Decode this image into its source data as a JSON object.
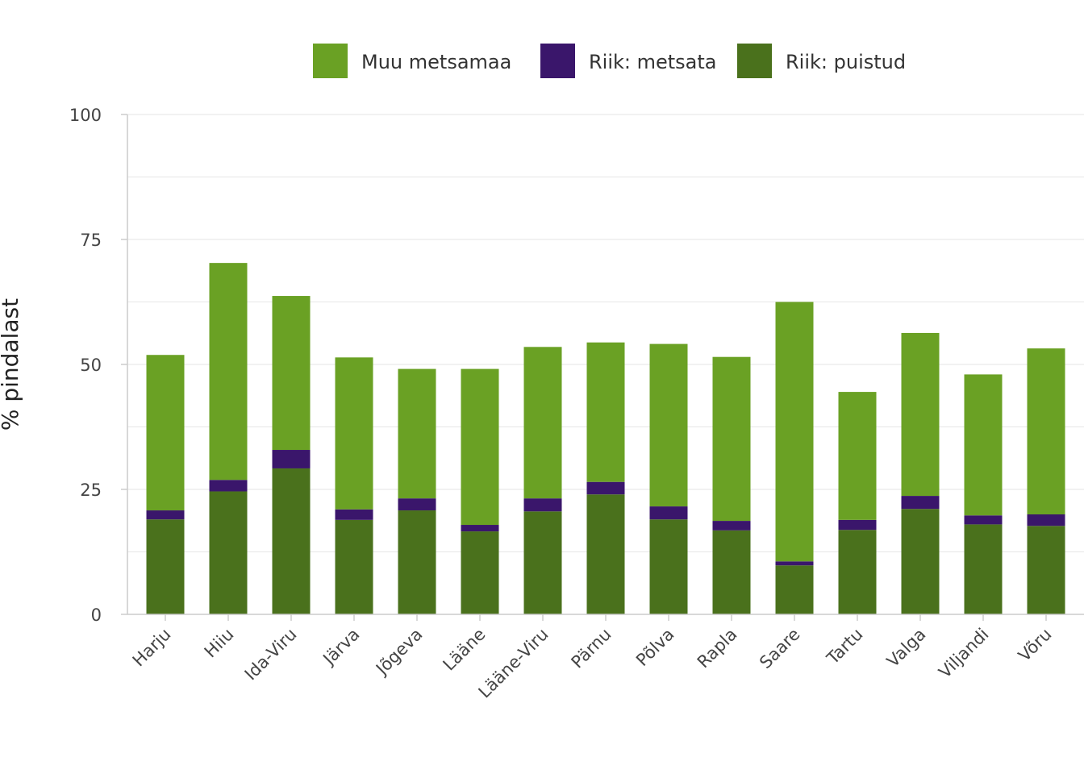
{
  "chart_data": {
    "type": "bar",
    "stacked": true,
    "ylabel": "% pindalast",
    "ylim": [
      0,
      100
    ],
    "yticks": [
      "0",
      "25",
      "50",
      "75",
      "100"
    ],
    "grid": true,
    "legend_position": "top",
    "categories": [
      "Harju",
      "Hiiu",
      "Ida-Viru",
      "Järva",
      "Jõgeva",
      "Lääne",
      "Lääne-Viru",
      "Pärnu",
      "Põlva",
      "Rapla",
      "Saare",
      "Tartu",
      "Valga",
      "Viljandi",
      "Võru"
    ],
    "series": [
      {
        "name": "Riik: puistud",
        "color": "#4a711c",
        "values": [
          19.0,
          24.6,
          29.2,
          18.9,
          20.8,
          16.6,
          20.6,
          24.0,
          19.0,
          16.8,
          9.8,
          16.9,
          21.1,
          18.0,
          17.7
        ]
      },
      {
        "name": "Riik: metsata",
        "color": "#3a166b",
        "values": [
          1.8,
          2.3,
          3.7,
          2.1,
          2.4,
          1.3,
          2.6,
          2.5,
          2.6,
          1.9,
          0.8,
          2.0,
          2.6,
          1.8,
          2.3
        ]
      },
      {
        "name": "Muu metsamaa",
        "color": "#6aa124",
        "values": [
          31.1,
          43.4,
          30.8,
          30.4,
          25.9,
          31.2,
          30.3,
          27.9,
          32.5,
          32.8,
          51.9,
          25.6,
          32.6,
          28.2,
          33.2
        ]
      }
    ],
    "legend_order": [
      "Muu metsamaa",
      "Riik: metsata",
      "Riik: puistud"
    ]
  }
}
